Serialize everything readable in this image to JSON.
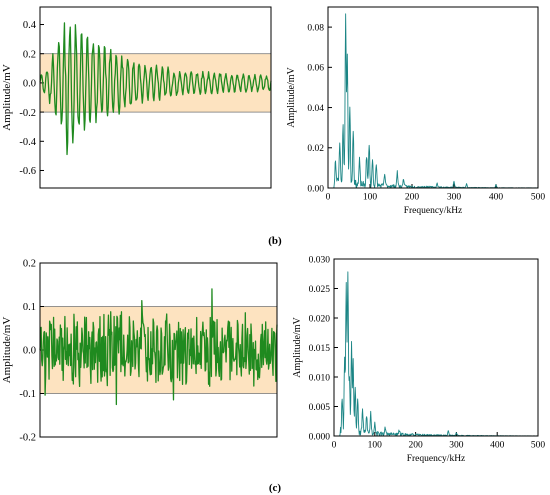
{
  "panel_labels": [
    "(b)",
    "(c)"
  ],
  "colors": {
    "time_signal": "#1f8a1f",
    "spectrum": "#1b8585",
    "band_fill": "#fde3c0"
  },
  "chart_data": [
    {
      "type": "line",
      "ylabel": "Amplitude/mV",
      "xlabel": "",
      "ylim": [
        -0.72,
        0.52
      ],
      "yticks": [
        -0.6,
        -0.4,
        -0.2,
        0.0,
        0.2,
        0.4
      ],
      "ytick_labels": [
        "-0.6",
        "-0.4",
        "-0.2",
        "0.0",
        "0.2",
        "0.4"
      ],
      "band": [
        -0.2,
        0.2
      ],
      "x_range": [
        0,
        1
      ],
      "signal": {
        "type": "burst",
        "peak": 0.49,
        "peak_at": 0.12,
        "decay": 0.2,
        "tail": 0.055,
        "freq": 40,
        "seed": 11,
        "samples": 360
      }
    },
    {
      "type": "line",
      "ylabel": "Amplitude/mV",
      "xlabel": "Frequency/kHz",
      "xlim": [
        0,
        500
      ],
      "ylim": [
        0,
        0.09
      ],
      "xticks": [
        0,
        100,
        200,
        300,
        400,
        500
      ],
      "xtick_labels": [
        "0",
        "100",
        "200",
        "300",
        "400",
        "500"
      ],
      "yticks": [
        0,
        0.02,
        0.04,
        0.06,
        0.08
      ],
      "ytick_labels": [
        "0.00",
        "0.02",
        "0.04",
        "0.06",
        "0.08"
      ],
      "peaks": [
        [
          18,
          0.012
        ],
        [
          28,
          0.022
        ],
        [
          36,
          0.03
        ],
        [
          42,
          0.084
        ],
        [
          46,
          0.065
        ],
        [
          52,
          0.04
        ],
        [
          60,
          0.028
        ],
        [
          75,
          0.012
        ],
        [
          92,
          0.015
        ],
        [
          98,
          0.021
        ],
        [
          106,
          0.013
        ],
        [
          115,
          0.01
        ],
        [
          135,
          0.006
        ],
        [
          165,
          0.007
        ],
        [
          180,
          0.004
        ],
        [
          260,
          0.002
        ],
        [
          300,
          0.003
        ],
        [
          330,
          0.002
        ],
        [
          400,
          0.0015
        ]
      ],
      "noise": {
        "level": 0.003,
        "seed": 23
      }
    },
    {
      "type": "line",
      "ylabel": "Amplitude/mV",
      "xlabel": "",
      "ylim": [
        -0.2,
        0.2
      ],
      "yticks": [
        -0.2,
        -0.1,
        0.0,
        0.1,
        0.2
      ],
      "ytick_labels": [
        "-0.2",
        "-0.1",
        "0.0",
        "0.1",
        "0.2"
      ],
      "band": [
        -0.1,
        0.1
      ],
      "x_range": [
        0,
        1
      ],
      "signal": {
        "type": "noise",
        "amp": 0.075,
        "max": 0.165,
        "min": -0.185,
        "freq": 75,
        "seed": 37,
        "samples": 420
      }
    },
    {
      "type": "line",
      "ylabel": "Amplitude/mV",
      "xlabel": "Frequency/kHz",
      "xlim": [
        0,
        500
      ],
      "ylim": [
        0,
        0.03
      ],
      "xticks": [
        0,
        100,
        200,
        300,
        400,
        500
      ],
      "xtick_labels": [
        "0",
        "100",
        "200",
        "300",
        "400",
        "500"
      ],
      "yticks": [
        0,
        0.005,
        0.01,
        0.015,
        0.02,
        0.025,
        0.03
      ],
      "ytick_labels": [
        "0.000",
        "0.005",
        "0.010",
        "0.015",
        "0.020",
        "0.025",
        "0.030"
      ],
      "peaks": [
        [
          20,
          0.006
        ],
        [
          26,
          0.012
        ],
        [
          30,
          0.025
        ],
        [
          34,
          0.0275
        ],
        [
          38,
          0.009
        ],
        [
          43,
          0.0155
        ],
        [
          47,
          0.012
        ],
        [
          52,
          0.0075
        ],
        [
          58,
          0.006
        ],
        [
          70,
          0.004
        ],
        [
          80,
          0.003
        ],
        [
          90,
          0.0035
        ],
        [
          100,
          0.002
        ],
        [
          125,
          0.001
        ],
        [
          160,
          0.0007
        ],
        [
          280,
          0.0008
        ],
        [
          300,
          0.0005
        ]
      ],
      "noise": {
        "level": 0.0009,
        "seed": 53
      }
    }
  ]
}
